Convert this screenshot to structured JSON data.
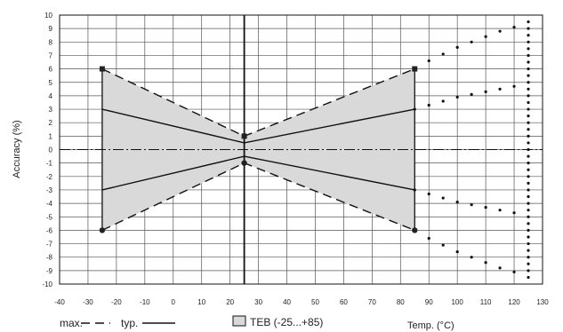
{
  "chart_data": {
    "type": "line",
    "title": "",
    "xlabel": "Temp. (°C)",
    "ylabel": "Accuracy (%)",
    "xlim": [
      -40,
      130
    ],
    "ylim": [
      -10,
      10
    ],
    "x_ticks": [
      -40,
      -30,
      -20,
      -10,
      0,
      10,
      20,
      30,
      40,
      50,
      60,
      70,
      80,
      90,
      100,
      110,
      120,
      130
    ],
    "y_ticks": [
      10,
      9,
      8,
      7,
      6,
      5,
      4,
      3,
      2,
      1,
      0,
      -1,
      -2,
      -3,
      -4,
      -5,
      -6,
      -7,
      -8,
      -9,
      -10
    ],
    "x_tick_labels": [
      "-40",
      "-30",
      "-20",
      "-10",
      "0",
      "10",
      "20",
      "30",
      "40",
      "50",
      "60",
      "70",
      "80",
      "90",
      "100",
      "110",
      "120",
      "130"
    ],
    "y_tick_labels": [
      "10",
      "9",
      "8",
      "7",
      "6",
      "5",
      "4",
      "3",
      "2",
      "1",
      "0",
      "-1",
      "-2",
      "-3",
      "-4",
      "-5",
      "-6",
      "-7",
      "-8",
      "-9",
      "-10"
    ],
    "grid": true,
    "reference_line_x": 25,
    "shaded_region": {
      "label": "TEB (-25...+85)",
      "x_range": [
        -25,
        85
      ],
      "polygon": [
        [
          -25,
          6
        ],
        [
          25,
          1
        ],
        [
          85,
          6
        ],
        [
          85,
          -6
        ],
        [
          25,
          -1
        ],
        [
          -25,
          -6
        ]
      ],
      "color": "#d9d9d9"
    },
    "series": [
      {
        "name": "max.",
        "style": "dashed",
        "x": [
          -25,
          25,
          85
        ],
        "y": [
          6,
          1,
          6
        ]
      },
      {
        "name": "max.",
        "style": "dashed",
        "x": [
          -25,
          25,
          85
        ],
        "y": [
          -6,
          -1,
          -6
        ]
      },
      {
        "name": "typ.",
        "style": "solid",
        "x": [
          -25,
          25,
          85
        ],
        "y": [
          3,
          0.5,
          3
        ]
      },
      {
        "name": "typ.",
        "style": "solid",
        "x": [
          -25,
          25,
          85
        ],
        "y": [
          -3,
          -0.5,
          -3
        ]
      },
      {
        "style": "dotted",
        "x": [
          85,
          90,
          95,
          100,
          105,
          110,
          115,
          120
        ],
        "y": [
          6,
          6.6,
          7.1,
          7.6,
          8.0,
          8.4,
          8.8,
          9.1
        ]
      },
      {
        "style": "dotted",
        "x": [
          85,
          90,
          95,
          100,
          105,
          110,
          115,
          120
        ],
        "y": [
          3,
          3.3,
          3.6,
          3.9,
          4.1,
          4.3,
          4.5,
          4.7
        ]
      },
      {
        "style": "dotted",
        "x": [
          85,
          90,
          95,
          100,
          105,
          110,
          115,
          120
        ],
        "y": [
          -3,
          -3.3,
          -3.6,
          -3.9,
          -4.1,
          -4.3,
          -4.5,
          -4.7
        ]
      },
      {
        "style": "dotted",
        "x": [
          85,
          90,
          95,
          100,
          105,
          110,
          115,
          120
        ],
        "y": [
          -6,
          -6.6,
          -7.1,
          -7.6,
          -8.0,
          -8.4,
          -8.8,
          -9.1
        ]
      },
      {
        "style": "dotted",
        "x": [
          125,
          125,
          125,
          125,
          125,
          125,
          125,
          125,
          125,
          125,
          125,
          125,
          125,
          125,
          125,
          125,
          125,
          125,
          125,
          125,
          125,
          125,
          125,
          125,
          125,
          125,
          125,
          125,
          125,
          125,
          125,
          125,
          125,
          125,
          125,
          125,
          125,
          125,
          125
        ],
        "y": [
          9.5,
          9,
          8.5,
          8,
          7.5,
          7,
          6.5,
          6,
          5.5,
          5,
          4.5,
          4,
          3.5,
          3,
          2.5,
          2,
          1.5,
          1,
          0.5,
          0,
          -0.5,
          -1,
          -1.5,
          -2,
          -2.5,
          -3,
          -3.5,
          -4,
          -4.5,
          -5,
          -5.5,
          -6,
          -6.5,
          -7,
          -7.5,
          -8,
          -8.5,
          -9,
          -9.5
        ]
      }
    ],
    "markers": [
      {
        "shape": "square",
        "x": -25,
        "y": 6
      },
      {
        "shape": "square",
        "x": 25,
        "y": 1
      },
      {
        "shape": "square",
        "x": 85,
        "y": 6
      },
      {
        "shape": "circle",
        "x": -25,
        "y": -6
      },
      {
        "shape": "circle",
        "x": 25,
        "y": -1
      },
      {
        "shape": "circle",
        "x": 85,
        "y": -6
      }
    ],
    "legend": {
      "placement": "bottom-left",
      "max_label": "max.",
      "typ_label": "typ.",
      "teb_label": "TEB (-25...+85)"
    }
  }
}
